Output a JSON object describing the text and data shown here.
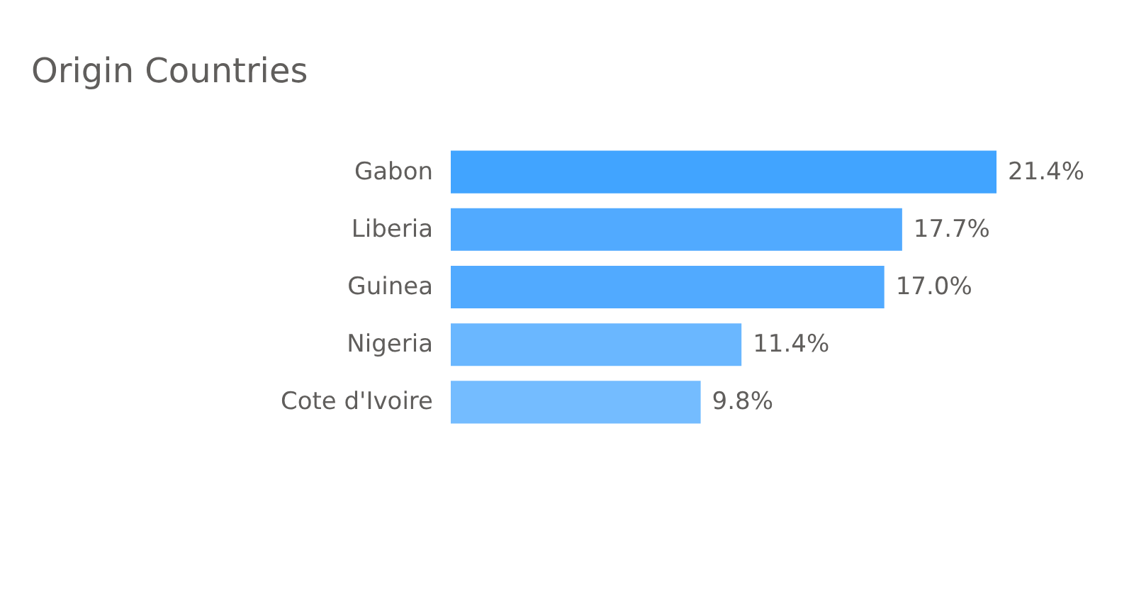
{
  "chart_data": {
    "type": "bar",
    "orientation": "horizontal",
    "title": "Origin Countries",
    "categories": [
      "Gabon",
      "Liberia",
      "Guinea",
      "Nigeria",
      "Cote d'Ivoire"
    ],
    "values": [
      21.4,
      17.7,
      17.0,
      11.4,
      9.8
    ],
    "colors": [
      "#41a4ff",
      "#51aaff",
      "#51aaff",
      "#6ab7ff",
      "#74bcff"
    ],
    "value_labels": [
      "21.4%",
      "17.7%",
      "17.0%",
      "11.4%",
      "9.8%"
    ]
  }
}
